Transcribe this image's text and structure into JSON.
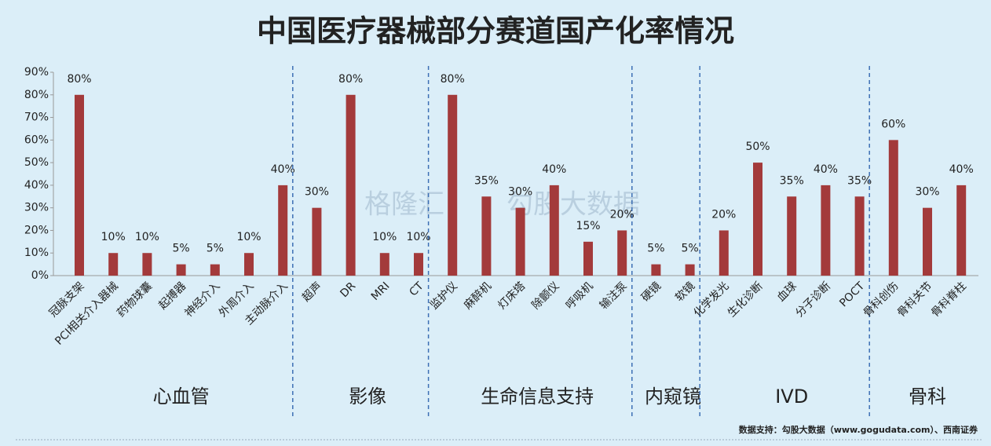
{
  "chart_data": {
    "type": "bar",
    "title": "中国医疗器械部分赛道国产化率情况",
    "color": "#a33a3b",
    "ylim": [
      0,
      90
    ],
    "yticks": [
      {
        "value": 0,
        "label": "0%"
      },
      {
        "value": 10,
        "label": "10%"
      },
      {
        "value": 20,
        "label": "20%"
      },
      {
        "value": 30,
        "label": "30%"
      },
      {
        "value": 40,
        "label": "40%"
      },
      {
        "value": 50,
        "label": "50%"
      },
      {
        "value": 60,
        "label": "60%"
      },
      {
        "value": 70,
        "label": "70%"
      },
      {
        "value": 80,
        "label": "80%"
      },
      {
        "value": 90,
        "label": "90%"
      }
    ],
    "groups": [
      {
        "name": "心血管",
        "categories": [
          "冠脉支架",
          "PCI相关介入器械",
          "药物球囊",
          "起搏器",
          "神经介入",
          "外周介入",
          "主动脉介入"
        ],
        "values": [
          80,
          10,
          10,
          5,
          5,
          10,
          40
        ],
        "value_labels": [
          "80%",
          "10%",
          "10%",
          "5%",
          "5%",
          "10%",
          "40%"
        ]
      },
      {
        "name": "影像",
        "categories": [
          "超声",
          "DR",
          "MRI",
          "CT"
        ],
        "values": [
          30,
          80,
          10,
          10
        ],
        "value_labels": [
          "30%",
          "80%",
          "10%",
          "10%"
        ]
      },
      {
        "name": "生命信息支持",
        "categories": [
          "监护仪",
          "麻醉机",
          "灯床塔",
          "除颤仪",
          "呼吸机",
          "输注泵"
        ],
        "values": [
          80,
          35,
          30,
          40,
          15,
          20
        ],
        "value_labels": [
          "80%",
          "35%",
          "30%",
          "40%",
          "15%",
          "20%"
        ]
      },
      {
        "name": "内窥镜",
        "categories": [
          "硬镜",
          "软镜"
        ],
        "values": [
          5,
          5
        ],
        "value_labels": [
          "5%",
          "5%"
        ]
      },
      {
        "name": "IVD",
        "categories": [
          "化学发光",
          "生化诊断",
          "血球",
          "分子诊断",
          "POCT"
        ],
        "values": [
          20,
          50,
          35,
          40,
          35
        ],
        "value_labels": [
          "20%",
          "50%",
          "35%",
          "40%",
          "35%"
        ]
      },
      {
        "name": "骨科",
        "categories": [
          "骨科创伤",
          "骨科关节",
          "骨科脊柱"
        ],
        "values": [
          60,
          30,
          40
        ],
        "value_labels": [
          "60%",
          "30%",
          "40%"
        ]
      }
    ],
    "watermarks": [
      "格隆汇",
      "勾股大数据"
    ],
    "source": "数据支持：勾股大数据（www.gogudata.com）、西南证券"
  }
}
